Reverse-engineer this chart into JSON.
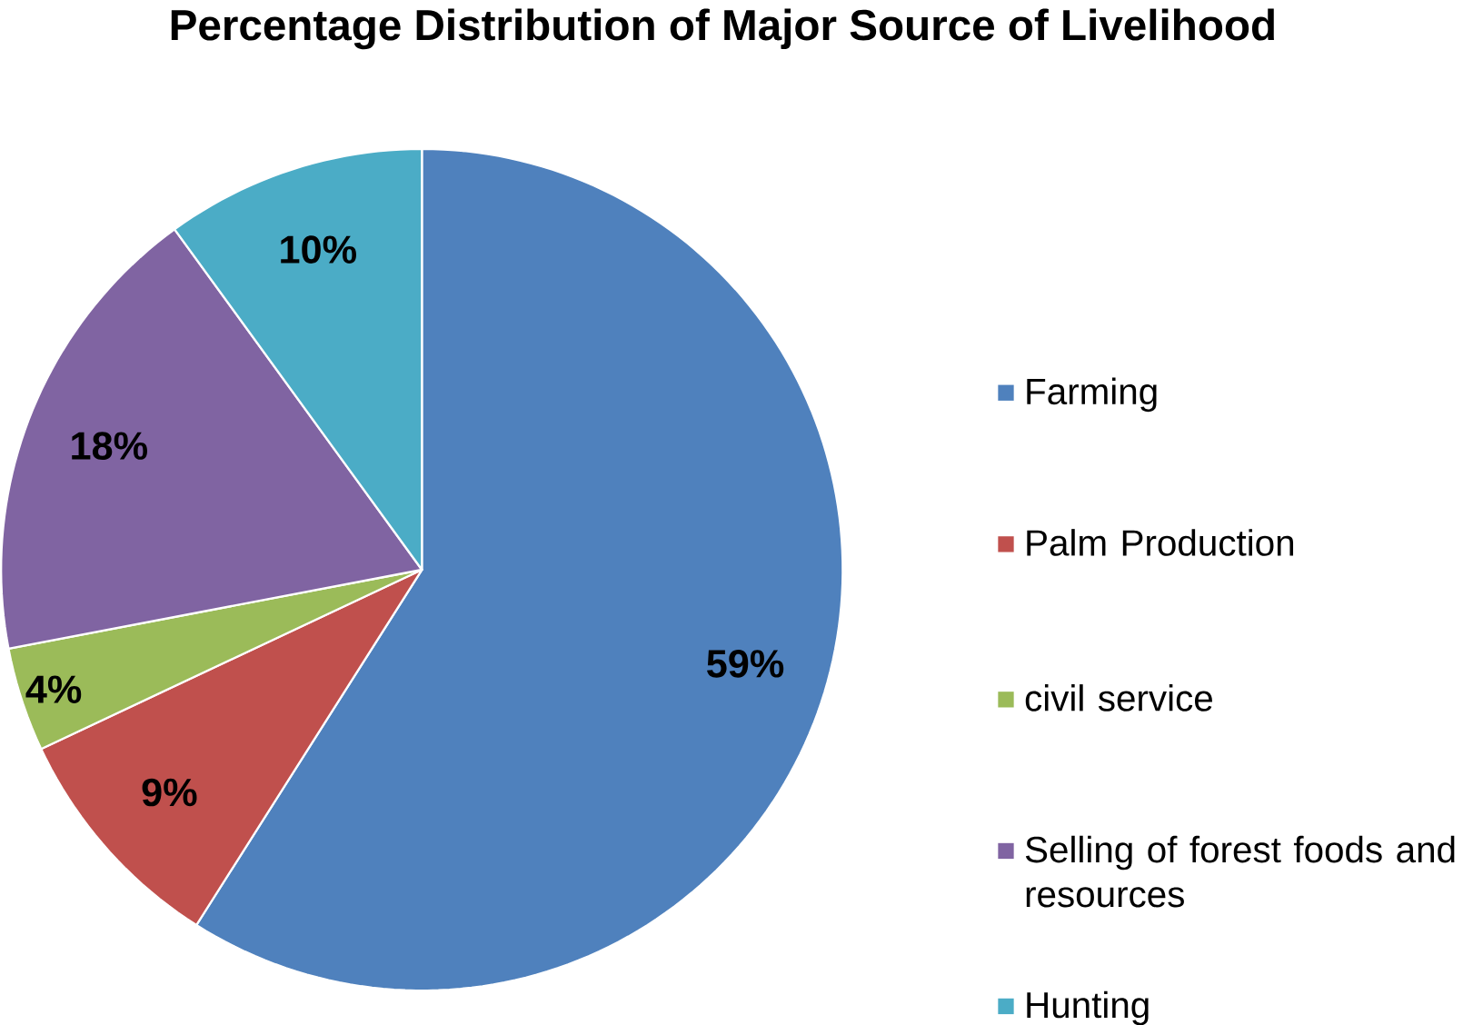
{
  "chart_data": {
    "type": "pie",
    "title": "Percentage Distribution of Major Source of Livelihood",
    "categories": [
      "Farming",
      "Palm Production",
      "civil service",
      "Selling of forest foods and resources",
      "Hunting"
    ],
    "values": [
      59,
      9,
      4,
      18,
      10
    ],
    "colors": [
      "#4f81bd",
      "#c0504d",
      "#9bbb59",
      "#8064a2",
      "#4bacc6"
    ],
    "value_labels": [
      "59%",
      "9%",
      "4%",
      "18%",
      "10%"
    ],
    "legend": "right"
  }
}
